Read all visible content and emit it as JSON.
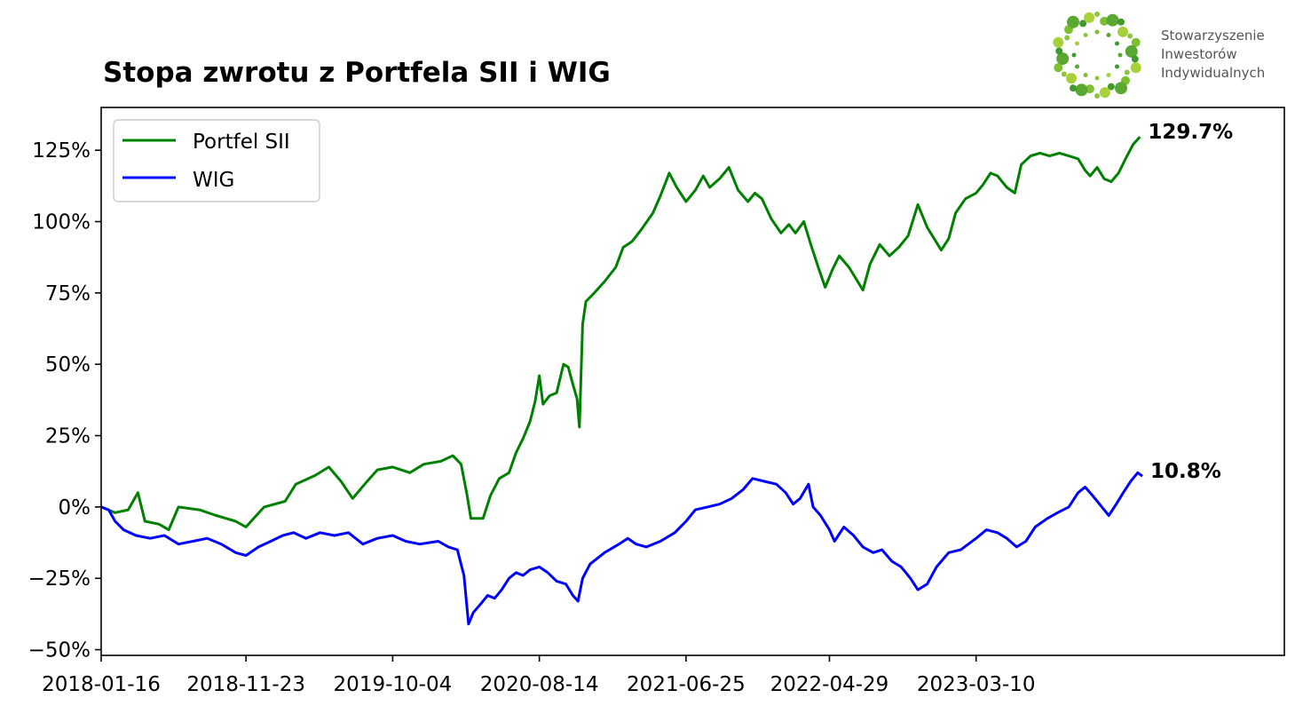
{
  "chart_data": {
    "type": "line",
    "title": "Stopa zwrotu z Portfela SII i WIG",
    "xlabel": "",
    "ylabel": "",
    "x_range": [
      "2018-01-16",
      "2024-12-31"
    ],
    "x_ticks": [
      "2018-01-16",
      "2018-11-23",
      "2019-10-04",
      "2020-08-14",
      "2021-06-25",
      "2022-04-29",
      "2023-03-10"
    ],
    "y_range": [
      -52,
      140
    ],
    "y_ticks": [
      -50,
      -25,
      0,
      25,
      50,
      75,
      100,
      125
    ],
    "y_tick_labels": [
      "−50%",
      "−25%",
      "0%",
      "25%",
      "50%",
      "75%",
      "100%",
      "125%"
    ],
    "grid": false,
    "legend_position": "top-left",
    "series": [
      {
        "name": "Portfel SII",
        "color": "#008000",
        "end_label": "129.7%",
        "points": [
          [
            "2018-01-16",
            0
          ],
          [
            "2018-02-15",
            -2
          ],
          [
            "2018-03-15",
            -1
          ],
          [
            "2018-04-05",
            5
          ],
          [
            "2018-04-20",
            -5
          ],
          [
            "2018-05-20",
            -6
          ],
          [
            "2018-06-10",
            -8
          ],
          [
            "2018-07-01",
            0
          ],
          [
            "2018-08-15",
            -1
          ],
          [
            "2018-09-20",
            -3
          ],
          [
            "2018-11-01",
            -5
          ],
          [
            "2018-11-23",
            -7
          ],
          [
            "2019-01-01",
            0
          ],
          [
            "2019-02-15",
            2
          ],
          [
            "2019-03-10",
            8
          ],
          [
            "2019-04-20",
            11
          ],
          [
            "2019-05-20",
            14
          ],
          [
            "2019-06-15",
            9
          ],
          [
            "2019-07-10",
            3
          ],
          [
            "2019-08-05",
            8
          ],
          [
            "2019-09-01",
            13
          ],
          [
            "2019-10-04",
            14
          ],
          [
            "2019-11-10",
            12
          ],
          [
            "2019-12-10",
            15
          ],
          [
            "2020-01-15",
            16
          ],
          [
            "2020-02-10",
            18
          ],
          [
            "2020-02-28",
            15
          ],
          [
            "2020-03-12",
            4
          ],
          [
            "2020-03-20",
            -4
          ],
          [
            "2020-04-15",
            -4
          ],
          [
            "2020-05-01",
            4
          ],
          [
            "2020-05-20",
            10
          ],
          [
            "2020-06-10",
            12
          ],
          [
            "2020-06-25",
            19
          ],
          [
            "2020-07-10",
            24
          ],
          [
            "2020-07-25",
            30
          ],
          [
            "2020-08-05",
            37
          ],
          [
            "2020-08-14",
            46
          ],
          [
            "2020-08-22",
            36
          ],
          [
            "2020-09-05",
            39
          ],
          [
            "2020-09-20",
            40
          ],
          [
            "2020-10-05",
            50
          ],
          [
            "2020-10-15",
            49
          ],
          [
            "2020-10-25",
            43
          ],
          [
            "2020-11-03",
            38
          ],
          [
            "2020-11-08",
            28
          ],
          [
            "2020-11-15",
            64
          ],
          [
            "2020-11-22",
            72
          ],
          [
            "2020-12-10",
            75
          ],
          [
            "2021-01-01",
            79
          ],
          [
            "2021-01-25",
            84
          ],
          [
            "2021-02-10",
            91
          ],
          [
            "2021-03-01",
            93
          ],
          [
            "2021-03-20",
            97
          ],
          [
            "2021-04-15",
            103
          ],
          [
            "2021-05-01",
            109
          ],
          [
            "2021-05-20",
            117
          ],
          [
            "2021-06-05",
            112
          ],
          [
            "2021-06-25",
            107
          ],
          [
            "2021-07-15",
            111
          ],
          [
            "2021-08-01",
            116
          ],
          [
            "2021-08-15",
            112
          ],
          [
            "2021-09-05",
            115
          ],
          [
            "2021-09-25",
            119
          ],
          [
            "2021-10-15",
            111
          ],
          [
            "2021-11-05",
            107
          ],
          [
            "2021-11-20",
            110
          ],
          [
            "2021-12-05",
            108
          ],
          [
            "2021-12-25",
            101
          ],
          [
            "2022-01-15",
            96
          ],
          [
            "2022-02-01",
            99
          ],
          [
            "2022-02-15",
            96
          ],
          [
            "2022-03-05",
            100
          ],
          [
            "2022-03-20",
            92
          ],
          [
            "2022-04-05",
            84
          ],
          [
            "2022-04-20",
            77
          ],
          [
            "2022-05-05",
            83
          ],
          [
            "2022-05-20",
            88
          ],
          [
            "2022-06-10",
            84
          ],
          [
            "2022-06-25",
            80
          ],
          [
            "2022-07-10",
            76
          ],
          [
            "2022-07-25",
            85
          ],
          [
            "2022-08-15",
            92
          ],
          [
            "2022-09-05",
            88
          ],
          [
            "2022-09-25",
            91
          ],
          [
            "2022-10-15",
            95
          ],
          [
            "2022-11-05",
            106
          ],
          [
            "2022-11-25",
            98
          ],
          [
            "2022-12-10",
            94
          ],
          [
            "2022-12-25",
            90
          ],
          [
            "2023-01-10",
            94
          ],
          [
            "2023-01-25",
            103
          ],
          [
            "2023-02-15",
            108
          ],
          [
            "2023-03-10",
            110
          ],
          [
            "2023-03-25",
            113
          ],
          [
            "2023-04-10",
            117
          ],
          [
            "2023-04-25",
            116
          ],
          [
            "2023-05-15",
            112
          ],
          [
            "2023-06-01",
            110
          ],
          [
            "2023-06-15",
            120
          ],
          [
            "2023-07-05",
            123
          ],
          [
            "2023-07-25",
            124
          ],
          [
            "2023-08-15",
            123
          ],
          [
            "2023-09-05",
            124
          ],
          [
            "2023-09-25",
            123
          ],
          [
            "2023-10-15",
            122
          ],
          [
            "2023-10-30",
            118
          ],
          [
            "2023-11-10",
            116
          ],
          [
            "2023-11-25",
            119
          ],
          [
            "2023-12-10",
            115
          ],
          [
            "2023-12-25",
            114
          ],
          [
            "2024-01-10",
            117
          ],
          [
            "2024-01-25",
            122
          ],
          [
            "2024-02-10",
            127
          ],
          [
            "2024-02-25",
            129.7
          ]
        ]
      },
      {
        "name": "WIG",
        "color": "#0000ff",
        "end_label": "10.8%",
        "points": [
          [
            "2018-01-16",
            0
          ],
          [
            "2018-02-01",
            -1
          ],
          [
            "2018-02-15",
            -5
          ],
          [
            "2018-03-05",
            -8
          ],
          [
            "2018-04-01",
            -10
          ],
          [
            "2018-05-01",
            -11
          ],
          [
            "2018-06-01",
            -10
          ],
          [
            "2018-07-01",
            -13
          ],
          [
            "2018-08-01",
            -12
          ],
          [
            "2018-09-01",
            -11
          ],
          [
            "2018-10-01",
            -13
          ],
          [
            "2018-11-01",
            -16
          ],
          [
            "2018-11-23",
            -17
          ],
          [
            "2018-12-20",
            -14
          ],
          [
            "2019-01-15",
            -12
          ],
          [
            "2019-02-10",
            -10
          ],
          [
            "2019-03-05",
            -9
          ],
          [
            "2019-04-01",
            -11
          ],
          [
            "2019-05-01",
            -9
          ],
          [
            "2019-06-01",
            -10
          ],
          [
            "2019-07-01",
            -9
          ],
          [
            "2019-08-01",
            -13
          ],
          [
            "2019-09-01",
            -11
          ],
          [
            "2019-10-04",
            -10
          ],
          [
            "2019-11-01",
            -12
          ],
          [
            "2019-12-01",
            -13
          ],
          [
            "2020-01-10",
            -12
          ],
          [
            "2020-02-01",
            -14
          ],
          [
            "2020-02-20",
            -15
          ],
          [
            "2020-03-05",
            -24
          ],
          [
            "2020-03-15",
            -41
          ],
          [
            "2020-03-25",
            -37
          ],
          [
            "2020-04-10",
            -34
          ],
          [
            "2020-04-25",
            -31
          ],
          [
            "2020-05-10",
            -32
          ],
          [
            "2020-05-25",
            -29
          ],
          [
            "2020-06-10",
            -25
          ],
          [
            "2020-06-25",
            -23
          ],
          [
            "2020-07-10",
            -24
          ],
          [
            "2020-07-25",
            -22
          ],
          [
            "2020-08-14",
            -21
          ],
          [
            "2020-09-01",
            -23
          ],
          [
            "2020-09-20",
            -26
          ],
          [
            "2020-10-10",
            -27
          ],
          [
            "2020-10-25",
            -31
          ],
          [
            "2020-11-05",
            -33
          ],
          [
            "2020-11-15",
            -25
          ],
          [
            "2020-12-01",
            -20
          ],
          [
            "2021-01-01",
            -16
          ],
          [
            "2021-02-01",
            -13
          ],
          [
            "2021-02-20",
            -11
          ],
          [
            "2021-03-10",
            -13
          ],
          [
            "2021-04-01",
            -14
          ],
          [
            "2021-05-01",
            -12
          ],
          [
            "2021-06-01",
            -9
          ],
          [
            "2021-06-25",
            -5
          ],
          [
            "2021-07-15",
            -1
          ],
          [
            "2021-08-10",
            0
          ],
          [
            "2021-09-05",
            1
          ],
          [
            "2021-10-01",
            3
          ],
          [
            "2021-10-25",
            6
          ],
          [
            "2021-11-15",
            10
          ],
          [
            "2021-12-10",
            9
          ],
          [
            "2022-01-05",
            8
          ],
          [
            "2022-01-25",
            5
          ],
          [
            "2022-02-10",
            1
          ],
          [
            "2022-02-25",
            3
          ],
          [
            "2022-03-15",
            8
          ],
          [
            "2022-03-25",
            0
          ],
          [
            "2022-04-10",
            -3
          ],
          [
            "2022-04-29",
            -8
          ],
          [
            "2022-05-10",
            -12
          ],
          [
            "2022-05-30",
            -7
          ],
          [
            "2022-06-20",
            -10
          ],
          [
            "2022-07-10",
            -14
          ],
          [
            "2022-08-01",
            -16
          ],
          [
            "2022-08-20",
            -15
          ],
          [
            "2022-09-10",
            -19
          ],
          [
            "2022-09-30",
            -21
          ],
          [
            "2022-10-20",
            -25
          ],
          [
            "2022-11-05",
            -29
          ],
          [
            "2022-11-25",
            -27
          ],
          [
            "2022-12-15",
            -21
          ],
          [
            "2023-01-10",
            -16
          ],
          [
            "2023-02-05",
            -15
          ],
          [
            "2023-03-10",
            -11
          ],
          [
            "2023-04-01",
            -8
          ],
          [
            "2023-04-25",
            -9
          ],
          [
            "2023-05-15",
            -11
          ],
          [
            "2023-06-05",
            -14
          ],
          [
            "2023-06-25",
            -12
          ],
          [
            "2023-07-15",
            -7
          ],
          [
            "2023-08-10",
            -4
          ],
          [
            "2023-09-01",
            -2
          ],
          [
            "2023-09-25",
            0
          ],
          [
            "2023-10-15",
            5
          ],
          [
            "2023-10-30",
            7
          ],
          [
            "2023-11-15",
            4
          ],
          [
            "2023-12-05",
            0
          ],
          [
            "2023-12-20",
            -3
          ],
          [
            "2024-01-05",
            1
          ],
          [
            "2024-01-20",
            5
          ],
          [
            "2024-02-05",
            9
          ],
          [
            "2024-02-20",
            12
          ],
          [
            "2024-03-01",
            10.8
          ]
        ]
      }
    ]
  },
  "logo": {
    "line1": "Stowarzyszenie",
    "line2": "Inwestorów",
    "line3": "Indywidualnych"
  }
}
